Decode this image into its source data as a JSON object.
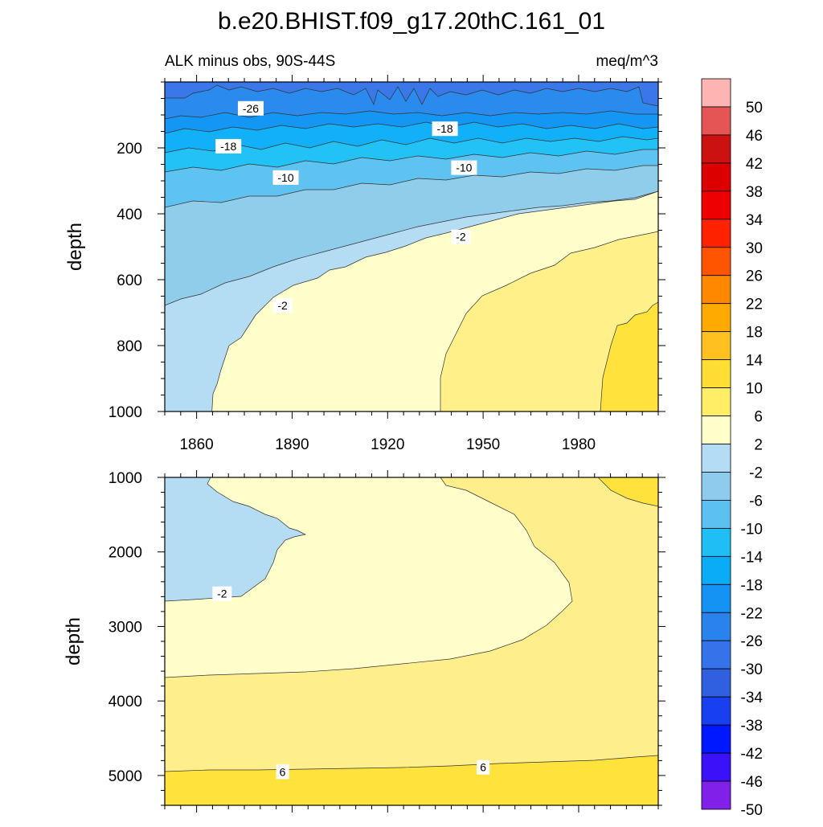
{
  "chart_data": [
    {
      "type": "contour",
      "title": "b.e20.BHIST.f09_g17.20thC.161_01",
      "subtitle_left": "ALK minus obs, 90S-44S",
      "subtitle_right": "meq/m^3",
      "ylabel": "depth",
      "xlim": [
        1850,
        2005
      ],
      "ylim": [
        0,
        1000
      ],
      "y_inverted": true,
      "x_ticks": [
        1860,
        1890,
        1920,
        1950,
        1980
      ],
      "x_tick_labels": [
        "1860",
        "1890",
        "1920",
        "1950",
        "1980"
      ],
      "y_ticks": [
        200,
        400,
        600,
        800,
        1000
      ],
      "y_tick_labels": [
        "200",
        "400",
        "600",
        "800",
        "1000"
      ],
      "contour_labels": [
        {
          "text": "-26",
          "x": 1877,
          "y": 80
        },
        {
          "text": "-18",
          "x": 1870,
          "y": 195
        },
        {
          "text": "-18",
          "x": 1938,
          "y": 142
        },
        {
          "text": "-10",
          "x": 1888,
          "y": 290
        },
        {
          "text": "-10",
          "x": 1944,
          "y": 260
        },
        {
          "text": "-2",
          "x": 1943,
          "y": 470
        },
        {
          "text": "-2",
          "x": 1887,
          "y": 678
        }
      ]
    },
    {
      "type": "contour",
      "ylabel": "depth",
      "xlim": [
        1850,
        2005
      ],
      "ylim": [
        1000,
        5400
      ],
      "y_inverted": true,
      "y_ticks": [
        1000,
        2000,
        3000,
        4000,
        5000
      ],
      "y_tick_labels": [
        "1000",
        "2000",
        "3000",
        "4000",
        "5000"
      ],
      "contour_labels": [
        {
          "text": "-2",
          "x": 1868,
          "y": 2560
        },
        {
          "text": "6",
          "x": 1887,
          "y": 4950
        },
        {
          "text": "6",
          "x": 1950,
          "y": 4890
        }
      ]
    }
  ],
  "colorbar": {
    "levels": [
      "50",
      "46",
      "42",
      "38",
      "34",
      "30",
      "26",
      "22",
      "18",
      "14",
      "10",
      "6",
      "2",
      "-2",
      "-6",
      "-10",
      "-14",
      "-18",
      "-22",
      "-26",
      "-30",
      "-34",
      "-38",
      "-42",
      "-46",
      "-50"
    ],
    "colors": [
      "#ffb4b4",
      "#e65555",
      "#cc1111",
      "#dd0000",
      "#ee0000",
      "#ff2200",
      "#ff5500",
      "#ff8800",
      "#ffaa00",
      "#ffc020",
      "#ffdd33",
      "#ffee66",
      "#ffffcc",
      "#b4dcf4",
      "#8ecbec",
      "#5cc0f0",
      "#1fbff6",
      "#0aacf8",
      "#1493f4",
      "#2a83ec",
      "#3573ea",
      "#3060e0",
      "#1840f0",
      "#0018ff",
      "#3c10f8",
      "#8020e8"
    ]
  }
}
